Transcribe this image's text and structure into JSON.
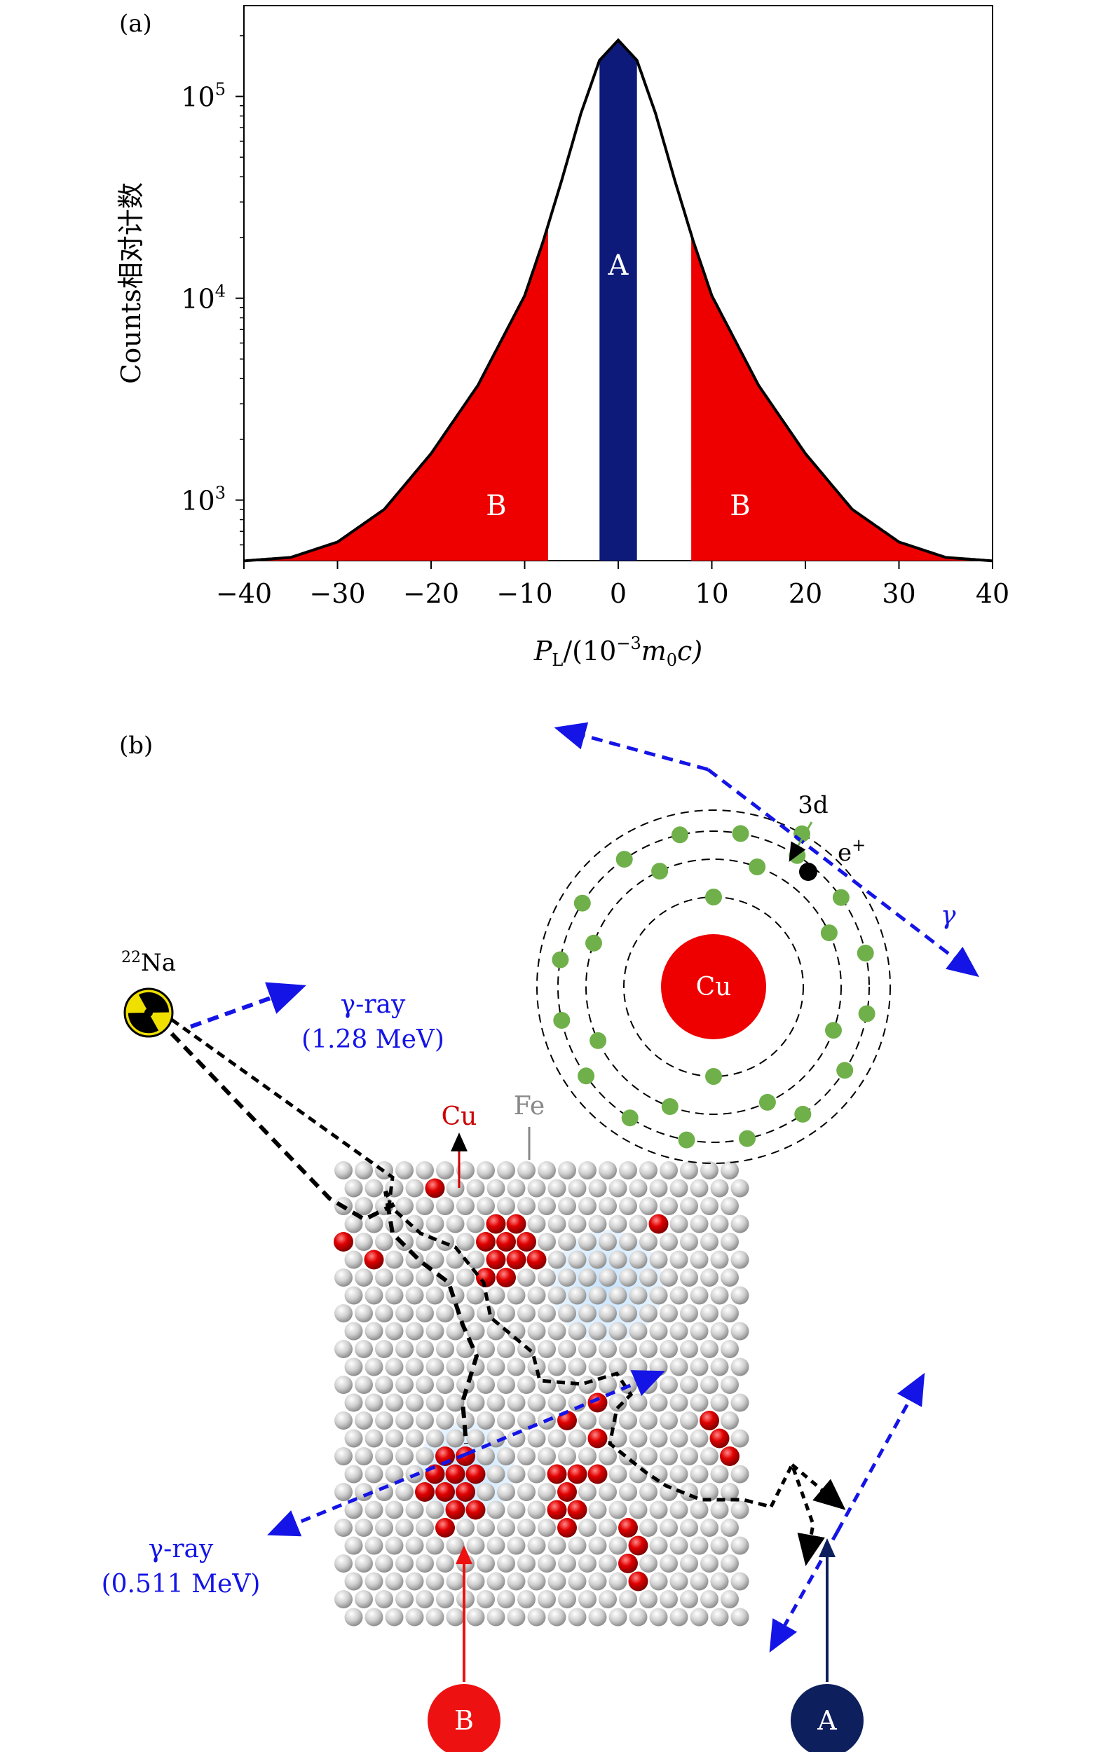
{
  "panel_a": {
    "label": "(a)",
    "ylabel": "Counts相对计数",
    "xlabel_main": "P",
    "xlabel_sub": "L",
    "xlabel_mid": "/(10",
    "xlabel_exp": "−3",
    "xlabel_m": "m",
    "xlabel_m_sub": "0",
    "xlabel_end": "c)",
    "region_a_label": "A",
    "region_b_label": "B",
    "colors": {
      "curve": "#000000",
      "region_a": "#0d1a7a",
      "region_b": "#ee0000"
    }
  },
  "chart_data": {
    "type": "area",
    "xlim": [
      -40,
      40
    ],
    "ylim_log10": [
      2.7,
      5.45
    ],
    "yscale": "log",
    "x_ticks": [
      -40,
      -30,
      -20,
      -10,
      0,
      10,
      20,
      30,
      40
    ],
    "x_tick_labels": [
      "−40",
      "−30",
      "−20",
      "−10",
      "0",
      "10",
      "20",
      "30",
      "40"
    ],
    "y_ticks": [
      {
        "base": "10",
        "exp": "3",
        "value": 1000
      },
      {
        "base": "10",
        "exp": "4",
        "value": 10000
      },
      {
        "base": "10",
        "exp": "5",
        "value": 100000
      }
    ],
    "x": [
      -40,
      -35,
      -30,
      -25,
      -20,
      -15,
      -10,
      -8,
      -6,
      -4,
      -2,
      0,
      2,
      4,
      6,
      8,
      10,
      15,
      20,
      25,
      30,
      35,
      40
    ],
    "values": [
      500,
      520,
      620,
      900,
      1700,
      3700,
      10300,
      19300,
      39000,
      82000,
      151000,
      190000,
      151000,
      82000,
      39000,
      19300,
      10300,
      3700,
      1700,
      900,
      620,
      520,
      500
    ],
    "regions": [
      {
        "name": "A",
        "x_range": [
          -2,
          2
        ]
      },
      {
        "name": "B",
        "x_range": [
          -40,
          -7.5
        ]
      },
      {
        "name": "B",
        "x_range": [
          7.8,
          40
        ]
      }
    ]
  },
  "panel_b": {
    "label": "(b)",
    "source_mass": "22",
    "source_name": "Na",
    "gamma_high_line1": "γ-ray",
    "gamma_high_line2": "(1.28 MeV)",
    "gamma_low_line1": "γ-ray",
    "gamma_low_line2": "(0.511 MeV)",
    "cu_label": "Cu",
    "fe_label": "Fe",
    "atom_core_label": "Cu",
    "orbital_label": "3d",
    "positron_label": "e",
    "positron_sup": "+",
    "gamma_symbol": "γ",
    "marker_a": "A",
    "marker_b": "B",
    "colors": {
      "gamma": "#1414e6",
      "cu": "#cc0000",
      "fe": "#777777",
      "electron": "#6fb04a",
      "marker_a": "#0d1f5c",
      "marker_b": "#ee1111"
    }
  }
}
